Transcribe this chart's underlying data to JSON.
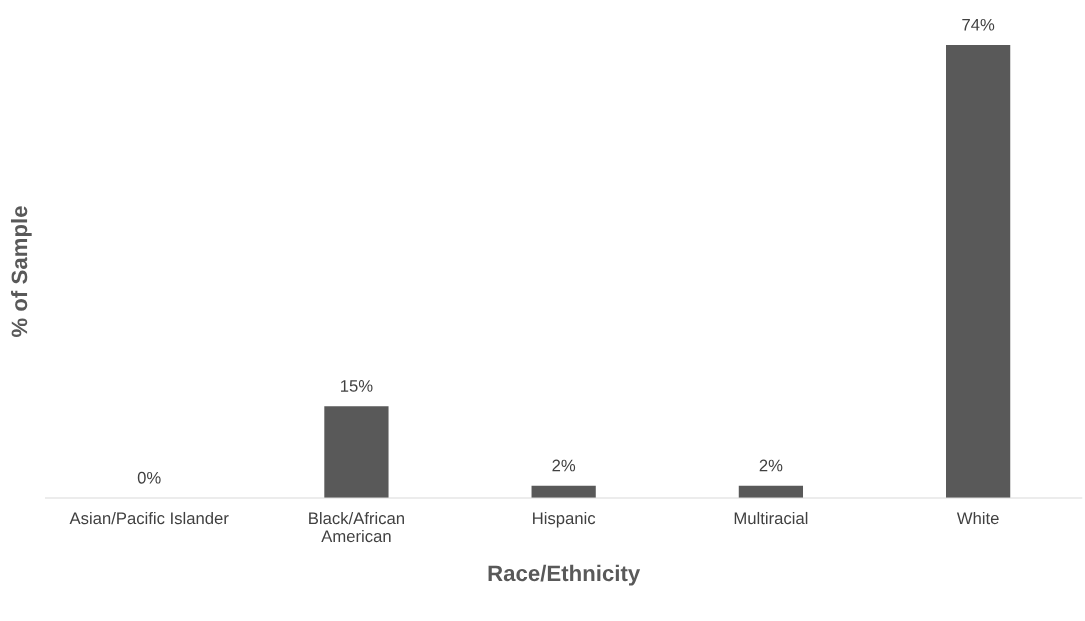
{
  "chart_data": {
    "type": "bar",
    "xlabel": "Race/Ethnicity",
    "ylabel": "% of Sample",
    "categories": [
      "Asian/Pacific Islander",
      "Black/African\nAmerican",
      "Hispanic",
      "Multiracial",
      "White"
    ],
    "values": [
      0,
      15,
      2,
      2,
      74
    ],
    "value_labels": [
      "0%",
      "15%",
      "2%",
      "2%",
      "74%"
    ],
    "color": "#595959",
    "grid": false,
    "legend": false
  }
}
